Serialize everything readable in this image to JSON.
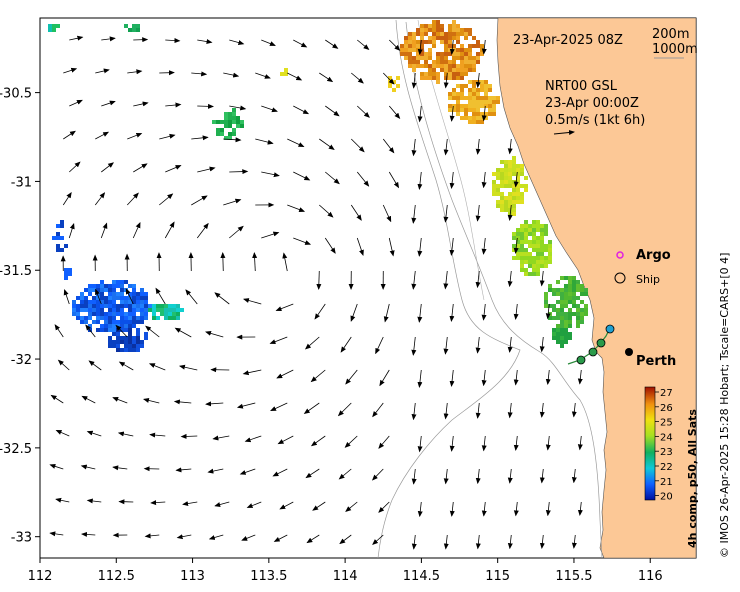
{
  "map": {
    "lon_range": [
      112,
      116.3
    ],
    "lat_range": [
      -33.12,
      -30.08
    ],
    "x_ticks": [
      "112",
      "112.5",
      "113",
      "113.5",
      "114",
      "114.5",
      "115",
      "115.5",
      "116"
    ],
    "x_tick_values": [
      112,
      112.5,
      113,
      113.5,
      114,
      114.5,
      115,
      115.5,
      116
    ],
    "y_ticks": [
      "-30.5",
      "-31",
      "-31.5",
      "-32",
      "-32.5",
      "-33"
    ],
    "y_tick_values": [
      -30.5,
      -31,
      -31.5,
      -32,
      -32.5,
      -33
    ],
    "date_label": "23-Apr-2025 08Z",
    "contour_labels": [
      "200m",
      "1000m"
    ],
    "product_label": {
      "line1": "NRT00 GSL",
      "line2": "23-Apr 00:00Z",
      "line3": "0.5m/s (1kt 6h)"
    },
    "legend": {
      "argo": "Argo",
      "ship": "Ship"
    },
    "city_label": "Perth",
    "colorbar": {
      "ticks": [
        "27",
        "26",
        "25",
        "24",
        "23",
        "22",
        "21",
        "20"
      ],
      "values": [
        27,
        26,
        25,
        24,
        23,
        22,
        21,
        20
      ],
      "title": "4h comp, p50, All Sats"
    },
    "side_caption": "© IMOS 26-Apr-2025 15:28 Hobart; Tscale=CARS+[0 4]",
    "colors": {
      "land": "#fcc896",
      "argo": "#e020e0",
      "ship_track": "#2a8a3a",
      "arrow": "#000000"
    }
  }
}
